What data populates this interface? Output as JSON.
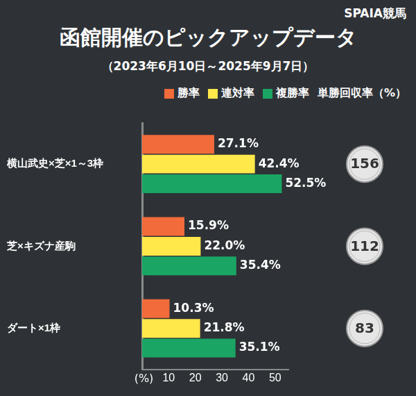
{
  "chart_data": {
    "type": "bar",
    "orientation": "horizontal",
    "title": "函館開催のピックアップデータ",
    "subtitle": "（2023年6月10日～2025年9月7日）",
    "brand": "SPAIA競馬",
    "categories": [
      "横山武史×芝×1～3枠",
      "芝×キズナ産駒",
      "ダート×1枠"
    ],
    "series": [
      {
        "name": "勝率",
        "color": "#f26b3a",
        "values": [
          27.1,
          15.9,
          10.3
        ],
        "value_labels": [
          "27.1%",
          "15.9%",
          "10.3%"
        ]
      },
      {
        "name": "連対率",
        "color": "#ffe84a",
        "values": [
          42.4,
          22.0,
          21.8
        ],
        "value_labels": [
          "42.4%",
          "22.0%",
          "21.8%"
        ]
      },
      {
        "name": "複勝率",
        "color": "#1aa564",
        "values": [
          52.5,
          35.4,
          35.1
        ],
        "value_labels": [
          "52.5%",
          "35.4%",
          "35.1%"
        ]
      }
    ],
    "return_rates": {
      "name": "単勝回収率（%）",
      "values": [
        156,
        112,
        83
      ]
    },
    "xlabel": "(%)",
    "xlim": [
      0,
      55
    ],
    "xticks": [
      10,
      20,
      30,
      40,
      50
    ],
    "grid": false,
    "data_labels": true,
    "legend": "top right"
  }
}
